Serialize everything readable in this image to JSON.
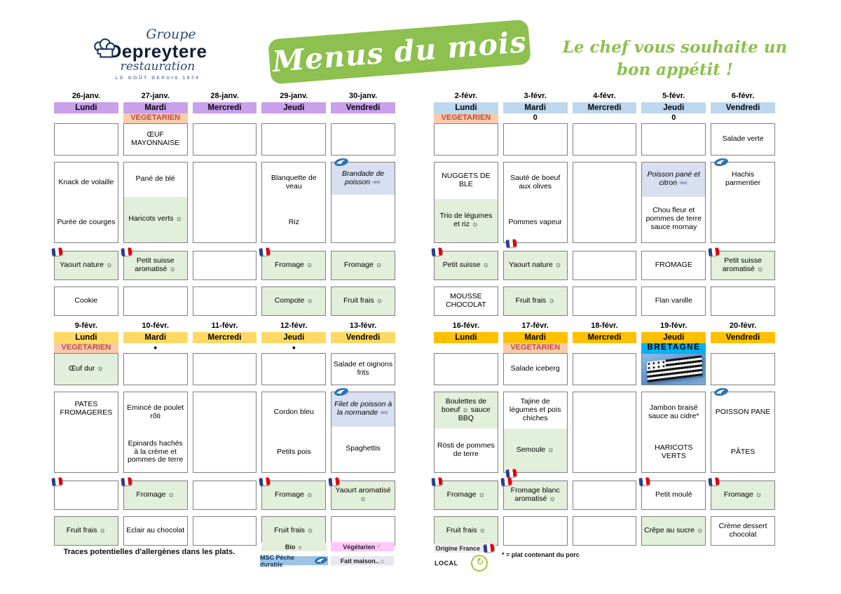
{
  "logo": {
    "group": "Groupe",
    "name": "Depreytere",
    "sub": "restauration",
    "tagline": "LE GOÛT DEPUIS 1974"
  },
  "banner": {
    "text": "Menus du mois"
  },
  "greeting": {
    "line1": "Le chef vous souhaite un",
    "line2": "bon appétit !"
  },
  "colors": {
    "banner_green": "#8dc04f",
    "week1_header": "#c9a0ea",
    "week2_header": "#bdd7ee",
    "week3_header": "#ffd966",
    "week4_header": "#ffc000",
    "vegetarien_bg": "#f8cbad",
    "vegetarien_text": "#bf4a3e",
    "bio_cell_green": "#e2efda",
    "fish_cell_blue": "#d8dff0",
    "bretagne_cyan": "#00b0f0",
    "msc_blue": "#2a72b5"
  },
  "icons": {
    "check": "✓",
    "house": "⌂",
    "recycle": "↻",
    "sun": "☼",
    "dot": "●"
  },
  "weeks": [
    {
      "header_color": "#c9a0ea",
      "days": [
        {
          "date": "26-janv.",
          "day": "Lundi",
          "badge": null,
          "entree": {
            "text": ""
          },
          "main": {
            "parts": [
              {
                "text": "Knack de volaille"
              },
              {
                "text": "Purée de courges"
              }
            ]
          },
          "dairy": {
            "text": "Yaourt nature ☼",
            "bg": "green",
            "flag": true
          },
          "dessert": {
            "text": "Cookie"
          }
        },
        {
          "date": "27-janv.",
          "day": "Mardi",
          "badge": {
            "type": "vegetarien",
            "label": "VEGETARIEN"
          },
          "entree": {
            "text": "ŒUF MAYONNAISE"
          },
          "main": {
            "parts": [
              {
                "text": "Pané de blé",
                "size": 0.42
              },
              {
                "text": "Haricots verts ☼",
                "bg": "green",
                "size": 0.58
              }
            ]
          },
          "dairy": {
            "text": "Petit suisse aromatisé ☼",
            "bg": "green",
            "flag": true
          },
          "dessert": {
            "text": ""
          }
        },
        {
          "date": "28-janv.",
          "day": "Mercredi",
          "badge": null,
          "entree": {
            "text": ""
          },
          "main": {
            "parts": []
          },
          "dairy": {
            "text": ""
          },
          "dessert": {
            "text": ""
          }
        },
        {
          "date": "29-janv.",
          "day": "Jeudi",
          "badge": null,
          "entree": {
            "text": ""
          },
          "main": {
            "parts": [
              {
                "text": "Blanquette de veau"
              },
              {
                "text": "Riz"
              }
            ]
          },
          "dairy": {
            "text": "Fromage ☼",
            "bg": "green",
            "flag": true
          },
          "dessert": {
            "text": "Compote ☼",
            "bg": "green"
          }
        },
        {
          "date": "30-janv.",
          "day": "Vendredi",
          "badge": null,
          "entree": {
            "text": ""
          },
          "main": {
            "msc": true,
            "parts": [
              {
                "text": "Brandade de poisson",
                "bg": "blue",
                "italic": true,
                "fish": true,
                "size": 0.4
              },
              {
                "text": "",
                "size": 0.6
              }
            ]
          },
          "dairy": {
            "text": "Fromage ☼",
            "bg": "green"
          },
          "dessert": {
            "text": "Fruit frais ☼",
            "bg": "green"
          }
        }
      ]
    },
    {
      "header_color": "#bdd7ee",
      "days": [
        {
          "date": "2-févr.",
          "day": "Lundi",
          "badge": {
            "type": "vegetarien",
            "label": "VEGETARIEN"
          },
          "entree": {
            "text": ""
          },
          "main": {
            "parts": [
              {
                "text": "NUGGETS DE BLE",
                "size": 0.45
              },
              {
                "text": "Trio de légumes et riz ☼",
                "bg": "green",
                "size": 0.55
              }
            ]
          },
          "dairy": {
            "text": "Petit suisse ☼",
            "bg": "green",
            "flag": true
          },
          "dessert": {
            "text": "MOUSSE CHOCOLAT"
          }
        },
        {
          "date": "3-févr.",
          "day": "Mardi",
          "badge": {
            "type": "zero",
            "label": "0"
          },
          "entree": {
            "text": ""
          },
          "main": {
            "parts": [
              {
                "text": "Sauté de boeuf aux olives"
              },
              {
                "text": "Pommes vapeur",
                "flag_bottom": true
              }
            ]
          },
          "dairy": {
            "text": "Yaourt nature ☼",
            "bg": "green"
          },
          "dessert": {
            "text": "Fruit frais ☼",
            "bg": "green"
          }
        },
        {
          "date": "4-févr.",
          "day": "Mercredi",
          "badge": null,
          "entree": {
            "text": ""
          },
          "main": {
            "parts": []
          },
          "dairy": {
            "text": ""
          },
          "dessert": {
            "text": ""
          }
        },
        {
          "date": "5-févr.",
          "day": "Jeudi",
          "badge": {
            "type": "zero",
            "label": "0"
          },
          "entree": {
            "text": ""
          },
          "main": {
            "parts": [
              {
                "text": "Poisson pané et citron",
                "bg": "blue",
                "italic": true,
                "fish": true,
                "size": 0.42
              },
              {
                "text": "Chou fleur et pommes de terre sauce mornay",
                "size": 0.58
              }
            ]
          },
          "dairy": {
            "text": "FROMAGE"
          },
          "dessert": {
            "text": "Flan vanille"
          }
        },
        {
          "date": "6-févr.",
          "day": "Vendredi",
          "badge": null,
          "entree": {
            "text": "Salade verte"
          },
          "main": {
            "msc": true,
            "parts": [
              {
                "text": "Hachis parmentier"
              }
            ]
          },
          "dairy": {
            "text": "Petit suisse aromatisé ☼",
            "bg": "green",
            "flag": true
          },
          "dessert": {
            "text": ""
          }
        }
      ]
    },
    {
      "header_color": "#ffd966",
      "days": [
        {
          "date": "9-févr.",
          "day": "Lundi",
          "badge": {
            "type": "vegetarien",
            "label": "VEGETARIEN"
          },
          "entree": {
            "text": "Œuf dur ☼",
            "bg": "green"
          },
          "main": {
            "parts": [
              {
                "text": "PATES FROMAGERES"
              }
            ]
          },
          "dairy": {
            "text": "",
            "flag": true
          },
          "dessert": {
            "text": "Fruit frais ☼",
            "bg": "green"
          }
        },
        {
          "date": "10-févr.",
          "day": "Mardi",
          "badge": {
            "type": "dot",
            "label": "●"
          },
          "entree": {
            "text": ""
          },
          "main": {
            "parts": [
              {
                "text": "Emincé de poulet rôti"
              },
              {
                "text": "Epinards hachés à la crème et pommes de terre"
              }
            ]
          },
          "dairy": {
            "text": "Fromage ☼",
            "bg": "green",
            "flag": true
          },
          "dessert": {
            "text": "Eclair au chocolat"
          }
        },
        {
          "date": "11-févr.",
          "day": "Mercredi",
          "badge": null,
          "entree": {
            "text": ""
          },
          "main": {
            "parts": []
          },
          "dairy": {
            "text": ""
          },
          "dessert": {
            "text": ""
          }
        },
        {
          "date": "12-févr.",
          "day": "Jeudi",
          "badge": {
            "type": "dot",
            "label": "●"
          },
          "entree": {
            "text": ""
          },
          "main": {
            "parts": [
              {
                "text": "Cordon bleu"
              },
              {
                "text": "Petits pois"
              }
            ]
          },
          "dairy": {
            "text": "Fromage ☼",
            "bg": "green",
            "flag": true
          },
          "dessert": {
            "text": "Fruit frais ☼",
            "bg": "green"
          }
        },
        {
          "date": "13-févr.",
          "day": "Vendredi",
          "badge": null,
          "entree": {
            "text": "Salade et oignons frits"
          },
          "main": {
            "msc": true,
            "parts": [
              {
                "text": "Filet de poisson à la normande",
                "bg": "blue",
                "italic": true,
                "fish": true,
                "size": 0.42
              },
              {
                "text": "Spaghettis",
                "size": 0.58
              }
            ]
          },
          "dairy": {
            "text": "Yaourt aromatisé ☼",
            "bg": "green",
            "flag": true
          },
          "dessert": {
            "text": ""
          }
        }
      ]
    },
    {
      "header_color": "#ffc000",
      "days": [
        {
          "date": "16-févr.",
          "day": "Lundi",
          "badge": null,
          "entree": {
            "text": ""
          },
          "main": {
            "parts": [
              {
                "text": "Boulettes de boeuf ☼ sauce BBQ",
                "bg": "green",
                "size": 0.45
              },
              {
                "text": "Rösti de pommes de terre",
                "size": 0.55
              }
            ]
          },
          "dairy": {
            "text": "Fromage ☼",
            "bg": "green",
            "flag": true
          },
          "dessert": {
            "text": "Fruit frais ☼",
            "bg": "green"
          }
        },
        {
          "date": "17-févr.",
          "day": "Mardi",
          "badge": {
            "type": "vegetarien",
            "label": "VEGETARIEN"
          },
          "entree": {
            "text": "Salade iceberg"
          },
          "main": {
            "parts": [
              {
                "text": "Tajine de légumes et pois chiches",
                "size": 0.45
              },
              {
                "text": "Semoule ☼",
                "bg": "green",
                "size": 0.55,
                "flag_bottom": true
              }
            ]
          },
          "dairy": {
            "text": "Fromage blanc aromatisé ☼",
            "bg": "green",
            "flag": true
          },
          "dessert": {
            "text": ""
          }
        },
        {
          "date": "18-févr.",
          "day": "Mercredi",
          "badge": null,
          "entree": {
            "text": ""
          },
          "main": {
            "parts": []
          },
          "dairy": {
            "text": ""
          },
          "dessert": {
            "text": ""
          }
        },
        {
          "date": "19-févr.",
          "day": "Jeudi",
          "badge": {
            "type": "bretagne",
            "label": "BRETAGNE"
          },
          "entree": {
            "image": "bretagne"
          },
          "main": {
            "parts": [
              {
                "text": "Jambon braisé sauce au cidre*"
              },
              {
                "text": "HARICOTS VERTS"
              }
            ]
          },
          "dairy": {
            "text": "Petit moulé",
            "flag": true
          },
          "dessert": {
            "text": "Crêpe au sucre ☼",
            "bg": "green"
          }
        },
        {
          "date": "20-févr.",
          "day": "Vendredi",
          "badge": null,
          "entree": {
            "text": ""
          },
          "main": {
            "msc": true,
            "parts": [
              {
                "text": "POISSON PANE"
              },
              {
                "text": "PÂTES"
              }
            ]
          },
          "dairy": {
            "text": "Fromage ☼",
            "bg": "green",
            "flag": true
          },
          "dessert": {
            "text": "Crème dessert chocolat"
          }
        }
      ]
    }
  ],
  "footer": {
    "allergens": "Traces potentielles d'allergènes dans les plats.",
    "bio": "Bio ☼",
    "msc": "MSC Pêche durable",
    "vegetarian": "Végétarien",
    "homemade": "Fait maison..",
    "origin": "Origine France",
    "local": "LOCAL",
    "pork": "* = plat contenant du porc"
  }
}
